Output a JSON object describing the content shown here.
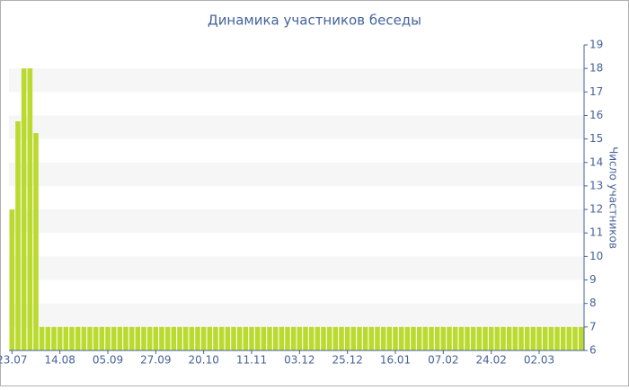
{
  "chart_data": {
    "type": "bar",
    "title": "Динамика участников беседы",
    "y_axis_label": "Число участников",
    "categories": [
      "23.07",
      null,
      null,
      null,
      null,
      null,
      null,
      null,
      "14.08",
      null,
      null,
      null,
      null,
      null,
      null,
      null,
      "05.09",
      null,
      null,
      null,
      null,
      null,
      null,
      null,
      "27.09",
      null,
      null,
      null,
      null,
      null,
      null,
      null,
      "20.10",
      null,
      null,
      null,
      null,
      null,
      null,
      null,
      "11.11",
      null,
      null,
      null,
      null,
      null,
      null,
      null,
      "03.12",
      null,
      null,
      null,
      null,
      null,
      null,
      null,
      "25.12",
      null,
      null,
      null,
      null,
      null,
      null,
      null,
      "16.01",
      null,
      null,
      null,
      null,
      null,
      null,
      null,
      "07.02",
      null,
      null,
      null,
      null,
      null,
      null,
      null,
      "24.02",
      null,
      null,
      null,
      null,
      null,
      null,
      null,
      "02.03",
      null,
      null,
      null,
      null,
      null,
      null,
      null
    ],
    "values": [
      12,
      15.75,
      18,
      18,
      15.25,
      7,
      7,
      7,
      7,
      7,
      7,
      7,
      7,
      7,
      7,
      7,
      7,
      7,
      7,
      7,
      7,
      7,
      7,
      7,
      7,
      7,
      7,
      7,
      7,
      7,
      7,
      7,
      7,
      7,
      7,
      7,
      7,
      7,
      7,
      7,
      7,
      7,
      7,
      7,
      7,
      7,
      7,
      7,
      7,
      7,
      7,
      7,
      7,
      7,
      7,
      7,
      7,
      7,
      7,
      7,
      7,
      7,
      7,
      7,
      7,
      7,
      7,
      7,
      7,
      7,
      7,
      7,
      7,
      7,
      7,
      7,
      7,
      7,
      7,
      7,
      7,
      7,
      7,
      7,
      7,
      7,
      7,
      7,
      7,
      7,
      7,
      7,
      7,
      7,
      7,
      7
    ],
    "color": "#bada2f",
    "ylim": [
      6,
      19
    ],
    "yticks": [
      6,
      7,
      8,
      9,
      10,
      11,
      12,
      13,
      14,
      15,
      16,
      17,
      18,
      19
    ],
    "grid": "bands",
    "y_axis_side": "right"
  }
}
